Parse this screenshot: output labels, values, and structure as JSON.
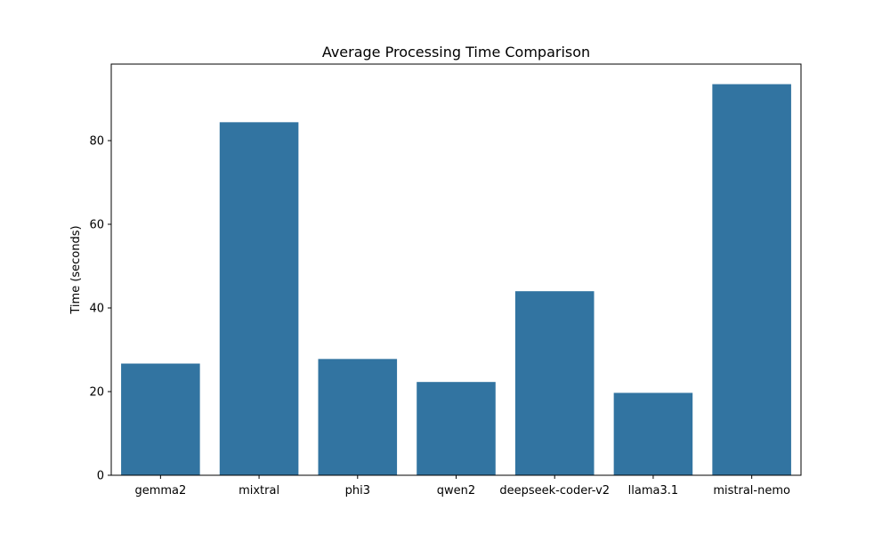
{
  "chart_data": {
    "type": "bar",
    "title": "Average Processing Time Comparison",
    "xlabel": "",
    "ylabel": "Time (seconds)",
    "categories": [
      "gemma2",
      "mixtral",
      "phi3",
      "qwen2",
      "deepseek-coder-v2",
      "llama3.1",
      "mistral-nemo"
    ],
    "values": [
      26.7,
      84.4,
      27.8,
      22.3,
      44.0,
      19.7,
      93.5
    ],
    "ylim": [
      0,
      98.3
    ],
    "yticks": [
      0,
      20,
      40,
      60,
      80
    ],
    "grid": false,
    "legend": "none",
    "bar_color": "#3274a1"
  }
}
